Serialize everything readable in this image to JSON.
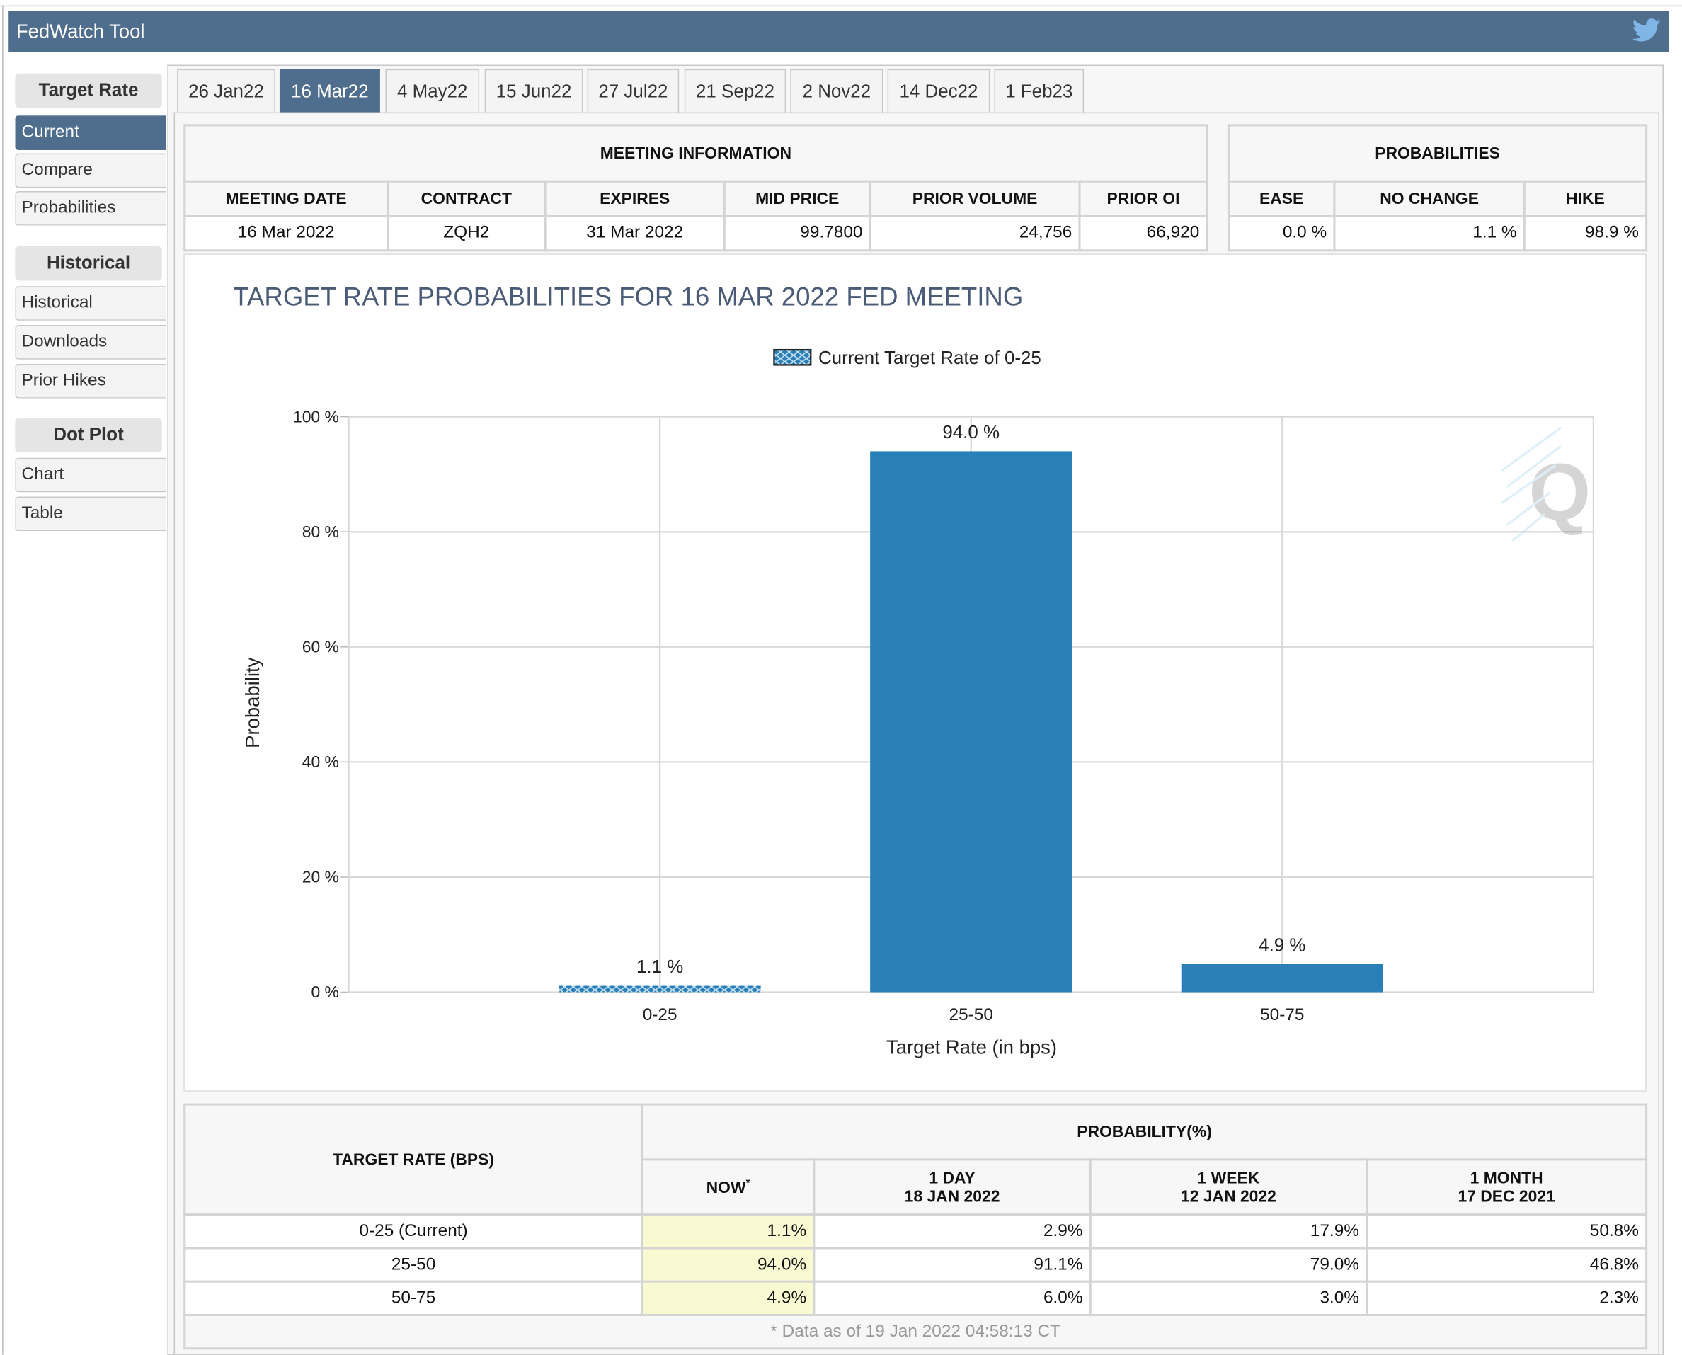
{
  "header": {
    "title": "FedWatch Tool",
    "icon": "twitter-icon"
  },
  "sidebar": {
    "groups": [
      {
        "label": "Target Rate",
        "items": [
          "Current",
          "Compare",
          "Probabilities"
        ]
      },
      {
        "label": "Historical",
        "items": [
          "Historical",
          "Downloads",
          "Prior Hikes"
        ]
      },
      {
        "label": "Dot Plot",
        "items": [
          "Chart",
          "Table"
        ]
      }
    ],
    "active": "Current"
  },
  "tabs": [
    "26 Jan22",
    "16 Mar22",
    "4 May22",
    "15 Jun22",
    "27 Jul22",
    "21 Sep22",
    "2 Nov22",
    "14 Dec22",
    "1 Feb23"
  ],
  "active_tab": "16 Mar22",
  "meeting_info": {
    "title": "MEETING INFORMATION",
    "headers": [
      "MEETING DATE",
      "CONTRACT",
      "EXPIRES",
      "MID PRICE",
      "PRIOR VOLUME",
      "PRIOR OI"
    ],
    "values": [
      "16 Mar 2022",
      "ZQH2",
      "31 Mar 2022",
      "99.7800",
      "24,756",
      "66,920"
    ]
  },
  "probabilities": {
    "title": "PROBABILITIES",
    "headers": [
      "EASE",
      "NO CHANGE",
      "HIKE"
    ],
    "values": [
      "0.0 %",
      "1.1 %",
      "98.9 %"
    ]
  },
  "chart_data": {
    "type": "bar",
    "title": "TARGET RATE PROBABILITIES FOR 16 MAR 2022 FED MEETING",
    "legend": "Current Target Rate of 0-25",
    "categories": [
      "0-25",
      "25-50",
      "50-75"
    ],
    "values": [
      1.1,
      94.0,
      4.9
    ],
    "data_labels": [
      "1.1 %",
      "94.0 %",
      "4.9 %"
    ],
    "current_category": "0-25",
    "xlabel": "Target Rate (in bps)",
    "ylabel": "Probability",
    "ylim": [
      0,
      100
    ],
    "yticks": [
      "0 %",
      "20 %",
      "40 %",
      "60 %",
      "80 %",
      "100 %"
    ],
    "grid": true,
    "bar_color": "#2a7fb8"
  },
  "prob_table": {
    "rate_header": "TARGET RATE (BPS)",
    "prob_header": "PROBABILITY(%)",
    "cols": [
      {
        "l1": "NOW",
        "l2": "",
        "mark": "*"
      },
      {
        "l1": "1 DAY",
        "l2": "18 JAN 2022"
      },
      {
        "l1": "1 WEEK",
        "l2": "12 JAN 2022"
      },
      {
        "l1": "1 MONTH",
        "l2": "17 DEC 2021"
      }
    ],
    "rows": [
      {
        "rate": "0-25 (Current)",
        "vals": [
          "1.1%",
          "2.9%",
          "17.9%",
          "50.8%"
        ]
      },
      {
        "rate": "25-50",
        "vals": [
          "94.0%",
          "91.1%",
          "79.0%",
          "46.8%"
        ]
      },
      {
        "rate": "50-75",
        "vals": [
          "4.9%",
          "6.0%",
          "3.0%",
          "2.3%"
        ]
      }
    ],
    "footnote": "* Data as of 19 Jan 2022 04:58:13 CT"
  }
}
